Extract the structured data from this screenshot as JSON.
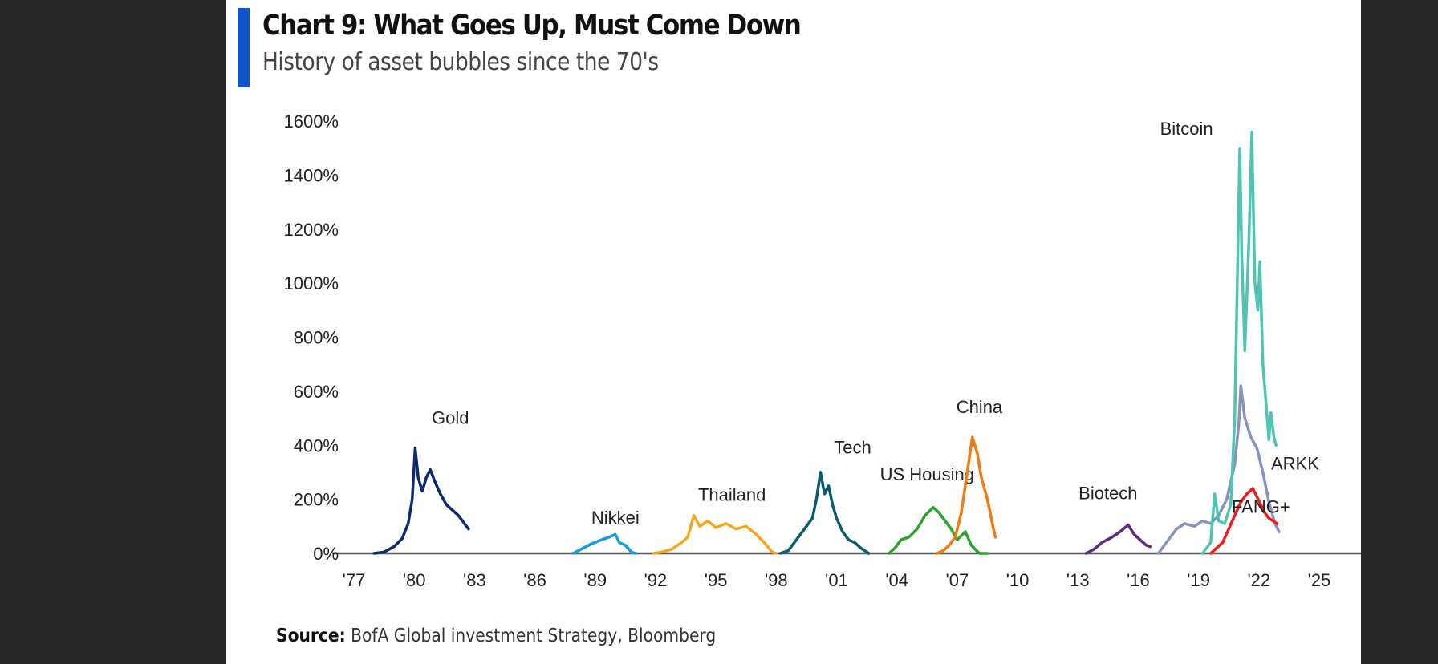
{
  "header": {
    "title": "Chart 9: What Goes Up, Must Come Down",
    "subtitle": "History of asset bubbles since the 70's"
  },
  "footer": {
    "source_label": "Source:",
    "source_text": "BofA Global investment Strategy, Bloomberg"
  },
  "colors": {
    "accent": "#1155cc",
    "background": "#262626",
    "panel": "#ffffff",
    "axis": "#595959"
  },
  "chart_data": {
    "type": "line",
    "title": "Chart 9: What Goes Up, Must Come Down",
    "subtitle": "History of asset bubbles since the 70's",
    "xlabel": "",
    "ylabel": "",
    "xlim": [
      1977,
      2025
    ],
    "ylim": [
      0,
      1600
    ],
    "x_ticks": [
      1977,
      1980,
      1983,
      1986,
      1989,
      1992,
      1995,
      1998,
      2001,
      2004,
      2007,
      2010,
      2013,
      2016,
      2019,
      2022,
      2025
    ],
    "x_tick_labels": [
      "'77",
      "'80",
      "'83",
      "'86",
      "'89",
      "'92",
      "'95",
      "'98",
      "'01",
      "'04",
      "'07",
      "'10",
      "'13",
      "'16",
      "'19",
      "'22",
      "'25"
    ],
    "y_ticks": [
      0,
      200,
      400,
      600,
      800,
      1000,
      1200,
      1400,
      1600
    ],
    "y_tick_labels": [
      "0%",
      "200%",
      "400%",
      "600%",
      "800%",
      "1000%",
      "1200%",
      "1400%",
      "1600%"
    ],
    "grid": false,
    "series": [
      {
        "name": "Gold",
        "color": "#0d2a6b",
        "label_at": [
          1981.8,
          480
        ],
        "points": [
          [
            1978.0,
            0
          ],
          [
            1978.5,
            5
          ],
          [
            1979.0,
            25
          ],
          [
            1979.4,
            55
          ],
          [
            1979.7,
            110
          ],
          [
            1979.9,
            200
          ],
          [
            1980.05,
            390
          ],
          [
            1980.2,
            280
          ],
          [
            1980.4,
            230
          ],
          [
            1980.6,
            280
          ],
          [
            1980.8,
            310
          ],
          [
            1981.0,
            270
          ],
          [
            1981.3,
            220
          ],
          [
            1981.6,
            180
          ],
          [
            1981.9,
            160
          ],
          [
            1982.2,
            140
          ],
          [
            1982.5,
            110
          ],
          [
            1982.7,
            90
          ]
        ]
      },
      {
        "name": "Nikkei",
        "color": "#1a9ad6",
        "label_at": [
          1990.0,
          110
        ],
        "points": [
          [
            1987.9,
            0
          ],
          [
            1988.3,
            15
          ],
          [
            1988.8,
            35
          ],
          [
            1989.3,
            50
          ],
          [
            1989.7,
            60
          ],
          [
            1990.0,
            70
          ],
          [
            1990.2,
            40
          ],
          [
            1990.5,
            30
          ],
          [
            1990.8,
            5
          ],
          [
            1991.0,
            0
          ]
        ]
      },
      {
        "name": "Thailand",
        "color": "#f0a81e",
        "label_at": [
          1995.8,
          195
        ],
        "points": [
          [
            1991.9,
            0
          ],
          [
            1992.3,
            5
          ],
          [
            1992.8,
            15
          ],
          [
            1993.3,
            40
          ],
          [
            1993.6,
            60
          ],
          [
            1993.9,
            140
          ],
          [
            1994.2,
            100
          ],
          [
            1994.6,
            120
          ],
          [
            1995.0,
            95
          ],
          [
            1995.5,
            110
          ],
          [
            1996.0,
            90
          ],
          [
            1996.5,
            100
          ],
          [
            1997.0,
            70
          ],
          [
            1997.4,
            40
          ],
          [
            1997.8,
            5
          ],
          [
            1998.0,
            0
          ]
        ]
      },
      {
        "name": "Tech",
        "color": "#0b5a6e",
        "label_at": [
          2001.8,
          370
        ],
        "points": [
          [
            1998.2,
            0
          ],
          [
            1998.6,
            10
          ],
          [
            1999.0,
            50
          ],
          [
            1999.4,
            90
          ],
          [
            1999.8,
            130
          ],
          [
            2000.0,
            200
          ],
          [
            2000.2,
            300
          ],
          [
            2000.4,
            220
          ],
          [
            2000.6,
            250
          ],
          [
            2000.8,
            180
          ],
          [
            2001.0,
            130
          ],
          [
            2001.3,
            80
          ],
          [
            2001.6,
            50
          ],
          [
            2001.9,
            40
          ],
          [
            2002.2,
            20
          ],
          [
            2002.6,
            0
          ]
        ]
      },
      {
        "name": "US Housing",
        "color": "#2da02d",
        "label_at": [
          2005.5,
          270
        ],
        "points": [
          [
            2003.6,
            0
          ],
          [
            2003.9,
            20
          ],
          [
            2004.2,
            50
          ],
          [
            2004.6,
            60
          ],
          [
            2005.0,
            90
          ],
          [
            2005.4,
            140
          ],
          [
            2005.8,
            170
          ],
          [
            2006.1,
            150
          ],
          [
            2006.4,
            120
          ],
          [
            2006.7,
            90
          ],
          [
            2007.0,
            50
          ],
          [
            2007.4,
            80
          ],
          [
            2007.7,
            30
          ],
          [
            2008.1,
            0
          ],
          [
            2008.5,
            0
          ]
        ]
      },
      {
        "name": "China",
        "color": "#f07b0e",
        "label_at": [
          2008.1,
          520
        ],
        "points": [
          [
            2006.0,
            0
          ],
          [
            2006.3,
            10
          ],
          [
            2006.6,
            30
          ],
          [
            2006.9,
            60
          ],
          [
            2007.2,
            150
          ],
          [
            2007.5,
            300
          ],
          [
            2007.75,
            430
          ],
          [
            2008.0,
            370
          ],
          [
            2008.2,
            280
          ],
          [
            2008.5,
            200
          ],
          [
            2008.8,
            90
          ],
          [
            2008.9,
            60
          ]
        ]
      },
      {
        "name": "Biotech",
        "color": "#5b2e7a",
        "label_at": [
          2014.5,
          200
        ],
        "points": [
          [
            2013.4,
            0
          ],
          [
            2013.8,
            15
          ],
          [
            2014.2,
            40
          ],
          [
            2014.7,
            60
          ],
          [
            2015.1,
            80
          ],
          [
            2015.5,
            105
          ],
          [
            2015.8,
            70
          ],
          [
            2016.1,
            50
          ],
          [
            2016.4,
            30
          ],
          [
            2016.6,
            25
          ]
        ]
      },
      {
        "name": "ARKK",
        "color": "#8793b8",
        "label_at": [
          2023.8,
          310
        ],
        "points": [
          [
            2017.0,
            0
          ],
          [
            2017.4,
            40
          ],
          [
            2017.9,
            90
          ],
          [
            2018.3,
            110
          ],
          [
            2018.8,
            100
          ],
          [
            2019.2,
            120
          ],
          [
            2019.6,
            110
          ],
          [
            2020.0,
            140
          ],
          [
            2020.4,
            200
          ],
          [
            2020.8,
            330
          ],
          [
            2021.0,
            480
          ],
          [
            2021.1,
            620
          ],
          [
            2021.3,
            500
          ],
          [
            2021.6,
            430
          ],
          [
            2021.9,
            390
          ],
          [
            2022.2,
            300
          ],
          [
            2022.5,
            190
          ],
          [
            2022.8,
            110
          ],
          [
            2023.0,
            80
          ]
        ]
      },
      {
        "name": "Bitcoin",
        "color": "#4fc4b1",
        "label_at": [
          2018.4,
          1550
        ],
        "points": [
          [
            2019.2,
            0
          ],
          [
            2019.6,
            40
          ],
          [
            2019.8,
            220
          ],
          [
            2020.0,
            120
          ],
          [
            2020.3,
            110
          ],
          [
            2020.6,
            180
          ],
          [
            2020.8,
            500
          ],
          [
            2020.9,
            900
          ],
          [
            2021.05,
            1500
          ],
          [
            2021.15,
            1100
          ],
          [
            2021.3,
            750
          ],
          [
            2021.5,
            1150
          ],
          [
            2021.65,
            1560
          ],
          [
            2021.8,
            1000
          ],
          [
            2021.95,
            900
          ],
          [
            2022.05,
            1080
          ],
          [
            2022.2,
            700
          ],
          [
            2022.35,
            560
          ],
          [
            2022.5,
            420
          ],
          [
            2022.6,
            520
          ],
          [
            2022.75,
            430
          ],
          [
            2022.85,
            400
          ]
        ]
      },
      {
        "name": "FANG+",
        "color": "#ee1c1c",
        "label_at": [
          2022.1,
          150
        ],
        "points": [
          [
            2019.6,
            0
          ],
          [
            2019.9,
            20
          ],
          [
            2020.2,
            40
          ],
          [
            2020.5,
            90
          ],
          [
            2020.8,
            140
          ],
          [
            2021.1,
            190
          ],
          [
            2021.4,
            220
          ],
          [
            2021.7,
            240
          ],
          [
            2021.9,
            210
          ],
          [
            2022.1,
            180
          ],
          [
            2022.3,
            150
          ],
          [
            2022.5,
            130
          ],
          [
            2022.7,
            120
          ],
          [
            2022.9,
            110
          ]
        ]
      }
    ]
  }
}
